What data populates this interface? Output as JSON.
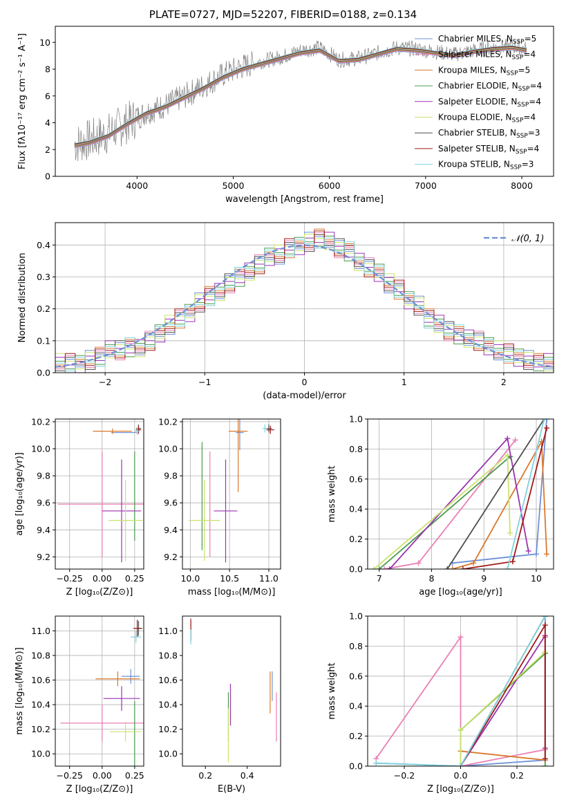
{
  "figure": {
    "title": "PLATE=0727, MJD=52207, FIBERID=0188, z=0.134"
  },
  "models": [
    {
      "name": "Chabrier MILES",
      "nssp": "5",
      "color": "#6c8fd6"
    },
    {
      "name": "Salpeter MILES",
      "nssp": "4",
      "color": "#e87fb6"
    },
    {
      "name": "Kroupa MILES",
      "nssp": "5",
      "color": "#d9782b"
    },
    {
      "name": "Chabrier ELODIE",
      "nssp": "4",
      "color": "#4a9a4a"
    },
    {
      "name": "Salpeter ELODIE",
      "nssp": "4",
      "color": "#9a32b0"
    },
    {
      "name": "Kroupa ELODIE",
      "nssp": "4",
      "color": "#c9e36a"
    },
    {
      "name": "Chabrier STELIB",
      "nssp": "3",
      "color": "#4d4d4d"
    },
    {
      "name": "Salpeter STELIB",
      "nssp": "4",
      "color": "#a01818"
    },
    {
      "name": "Kroupa STELIB",
      "nssp": "3",
      "color": "#7fd3dc"
    }
  ],
  "chart_data": [
    {
      "id": "spectrum",
      "type": "line",
      "xlabel": "wavelength [Angstrom, rest frame]",
      "ylabel": "Flux [fλ10⁻¹⁷ erg cm⁻² s⁻¹ A⁻¹]",
      "xlim": [
        3150,
        8330
      ],
      "ylim": [
        0,
        11.2
      ],
      "xticks": [
        4000,
        5000,
        6000,
        7000,
        8000
      ],
      "yticks": [
        0,
        2,
        4,
        6,
        8,
        10
      ],
      "grid": false,
      "legend": "top-right",
      "data_color": "#808080",
      "x": [
        3350,
        3500,
        3700,
        3900,
        4100,
        4300,
        4500,
        4700,
        4900,
        5100,
        5300,
        5500,
        5700,
        5900,
        6100,
        6300,
        6500,
        6700,
        6900,
        7100,
        7300,
        7500,
        7700,
        7900,
        8050
      ],
      "data": [
        2.4,
        2.7,
        3.2,
        4.0,
        4.8,
        5.3,
        6.0,
        6.8,
        7.6,
        8.2,
        8.6,
        8.9,
        9.4,
        9.6,
        8.7,
        8.8,
        9.2,
        9.6,
        9.5,
        9.3,
        9.1,
        9.4,
        9.6,
        9.7,
        9.5
      ],
      "model": [
        2.3,
        2.5,
        3.0,
        3.9,
        4.7,
        5.2,
        5.9,
        6.6,
        7.4,
        8.0,
        8.4,
        8.8,
        9.2,
        9.4,
        8.6,
        8.7,
        9.1,
        9.5,
        9.4,
        9.2,
        9.0,
        9.3,
        9.5,
        9.6,
        9.4
      ]
    },
    {
      "id": "residuals",
      "type": "line",
      "xlabel": "(data-model)/error",
      "ylabel": "Normed distribution",
      "xlim": [
        -2.5,
        2.5
      ],
      "ylim": [
        0,
        0.47
      ],
      "xticks": [
        -2,
        -1,
        0,
        1,
        2
      ],
      "yticks": [
        0.0,
        0.1,
        0.2,
        0.3,
        0.4
      ],
      "grid": true,
      "legend": "top-right",
      "gauss_label": "𝒩(0, 1)",
      "gauss_color": "#6c8fd6",
      "bins": [
        -2.5,
        -2.4,
        -2.3,
        -2.2,
        -2.1,
        -2.0,
        -1.9,
        -1.8,
        -1.7,
        -1.6,
        -1.5,
        -1.4,
        -1.3,
        -1.2,
        -1.1,
        -1.0,
        -0.9,
        -0.8,
        -0.7,
        -0.6,
        -0.5,
        -0.4,
        -0.3,
        -0.2,
        -0.1,
        0.0,
        0.1,
        0.2,
        0.3,
        0.4,
        0.5,
        0.6,
        0.7,
        0.8,
        0.9,
        1.0,
        1.1,
        1.2,
        1.3,
        1.4,
        1.5,
        1.6,
        1.7,
        1.8,
        1.9,
        2.0,
        2.1,
        2.2,
        2.3,
        2.4
      ],
      "hist": [
        0.03,
        0.03,
        0.03,
        0.04,
        0.05,
        0.07,
        0.07,
        0.08,
        0.08,
        0.1,
        0.12,
        0.15,
        0.17,
        0.19,
        0.22,
        0.24,
        0.25,
        0.28,
        0.3,
        0.32,
        0.34,
        0.36,
        0.37,
        0.39,
        0.4,
        0.41,
        0.42,
        0.41,
        0.39,
        0.38,
        0.35,
        0.33,
        0.31,
        0.28,
        0.26,
        0.23,
        0.21,
        0.17,
        0.15,
        0.13,
        0.12,
        0.11,
        0.1,
        0.08,
        0.07,
        0.06,
        0.05,
        0.04,
        0.03,
        0.03
      ]
    },
    {
      "id": "Z-age",
      "type": "scatter",
      "xlabel": "Z [log₁₀(Z/Z⊙)]",
      "ylabel": "age  [log₁₀(age/yr)]",
      "xlim": [
        -0.36,
        0.32
      ],
      "ylim": [
        9.11,
        10.22
      ],
      "xticks": [
        -0.25,
        0.0,
        0.25
      ],
      "yticks": [
        9.2,
        9.4,
        9.6,
        9.8,
        10.0,
        10.2
      ],
      "grid": true,
      "points": [
        {
          "m": 0,
          "x": 0.17,
          "y": 10.12,
          "xerr": 0.1,
          "yerr": 0.0
        },
        {
          "m": 1,
          "x": 0.0,
          "y": 9.59,
          "xerr": 0.34,
          "yerr": 0.39
        },
        {
          "m": 2,
          "x": 0.08,
          "y": 10.13,
          "xerr": 0.15,
          "yerr": 0.02
        },
        {
          "m": 3,
          "x": 0.25,
          "y": 9.65,
          "xerr": 0.0,
          "yerr": 0.33
        },
        {
          "m": 4,
          "x": 0.15,
          "y": 9.54,
          "xerr": 0.15,
          "yerr": 0.38
        },
        {
          "m": 5,
          "x": 0.18,
          "y": 9.47,
          "xerr": 0.13,
          "yerr": 0.3
        },
        {
          "m": 6,
          "x": 0.28,
          "y": 10.15,
          "xerr": 0.02,
          "yerr": 0.03
        },
        {
          "m": 7,
          "x": 0.28,
          "y": 10.14,
          "xerr": 0.02,
          "yerr": 0.03
        },
        {
          "m": 8,
          "x": 0.27,
          "y": 10.13,
          "xerr": 0.02,
          "yerr": 0.03
        }
      ]
    },
    {
      "id": "mass-age",
      "type": "scatter",
      "xlabel": "mass [log₁₀(M/M⊙)]",
      "ylabel": "",
      "xlim": [
        9.9,
        11.15
      ],
      "ylim": [
        9.11,
        10.22
      ],
      "xticks": [
        10.0,
        10.5,
        11.0
      ],
      "yticks": [
        9.2,
        9.4,
        9.6,
        9.8,
        10.0,
        10.2
      ],
      "grid": true,
      "points": [
        {
          "m": 0,
          "x": 10.63,
          "y": 10.12,
          "xerr": 0.05,
          "yerr": 0.13
        },
        {
          "m": 1,
          "x": 10.25,
          "y": 9.59,
          "xerr": 0.0,
          "yerr": 0.39
        },
        {
          "m": 2,
          "x": 10.61,
          "y": 10.13,
          "xerr": 0.12,
          "yerr": 0.45
        },
        {
          "m": 3,
          "x": 10.15,
          "y": 9.65,
          "xerr": 0.0,
          "yerr": 0.4
        },
        {
          "m": 4,
          "x": 10.45,
          "y": 9.54,
          "xerr": 0.15,
          "yerr": 0.38
        },
        {
          "m": 5,
          "x": 10.18,
          "y": 9.47,
          "xerr": 0.2,
          "yerr": 0.3
        },
        {
          "m": 6,
          "x": 11.0,
          "y": 10.15,
          "xerr": 0.04,
          "yerr": 0.03
        },
        {
          "m": 7,
          "x": 11.02,
          "y": 10.14,
          "xerr": 0.05,
          "yerr": 0.03
        },
        {
          "m": 8,
          "x": 10.95,
          "y": 10.15,
          "xerr": 0.03,
          "yerr": 0.03
        }
      ]
    },
    {
      "id": "age-weight",
      "type": "line",
      "xlabel": "age  [log₁₀(age/yr)]",
      "ylabel": "mass weight",
      "xlim": [
        6.78,
        10.33
      ],
      "ylim": [
        0,
        1.0
      ],
      "xticks": [
        7,
        8,
        9,
        10
      ],
      "yticks": [
        0.0,
        0.2,
        0.4,
        0.6,
        0.8,
        1.0
      ],
      "grid": true,
      "series": [
        {
          "m": 0,
          "x": [
            8.4,
            10.0,
            10.2
          ],
          "y": [
            0.04,
            0.1,
            1.0
          ]
        },
        {
          "m": 1,
          "x": [
            7.1,
            7.75,
            9.6
          ],
          "y": [
            0.0,
            0.04,
            0.86
          ]
        },
        {
          "m": 2,
          "x": [
            8.4,
            8.8,
            10.1,
            10.2
          ],
          "y": [
            0.0,
            0.04,
            0.85,
            0.1
          ]
        },
        {
          "m": 3,
          "x": [
            7.0,
            9.5
          ],
          "y": [
            0.0,
            0.75
          ]
        },
        {
          "m": 4,
          "x": [
            7.2,
            9.45,
            9.85
          ],
          "y": [
            0.0,
            0.87,
            0.12
          ]
        },
        {
          "m": 5,
          "x": [
            6.9,
            9.45,
            9.5
          ],
          "y": [
            0.0,
            0.76,
            0.24
          ]
        },
        {
          "m": 6,
          "x": [
            8.3,
            10.15
          ],
          "y": [
            0.0,
            1.0
          ]
        },
        {
          "m": 7,
          "x": [
            8.6,
            9.55,
            10.2
          ],
          "y": [
            0.0,
            0.05,
            0.94
          ]
        },
        {
          "m": 8,
          "x": [
            9.45,
            10.15
          ],
          "y": [
            0.0,
            1.0
          ]
        }
      ]
    },
    {
      "id": "Z-mass",
      "type": "scatter",
      "xlabel": "Z [log₁₀(Z/Z⊙)]",
      "ylabel": "mass [log₁₀(M/M⊙)]",
      "xlim": [
        -0.36,
        0.32
      ],
      "ylim": [
        9.9,
        11.12
      ],
      "xticks": [
        -0.25,
        0.0,
        0.25
      ],
      "yticks": [
        10.0,
        10.2,
        10.4,
        10.6,
        10.8,
        11.0
      ],
      "grid": true,
      "points": [
        {
          "m": 0,
          "x": 0.22,
          "y": 10.63,
          "xerr": 0.07,
          "yerr": 0.06
        },
        {
          "m": 1,
          "x": 0.0,
          "y": 10.25,
          "xerr": 0.32,
          "yerr": 0.15
        },
        {
          "m": 2,
          "x": 0.12,
          "y": 10.61,
          "xerr": 0.17,
          "yerr": 0.06
        },
        {
          "m": 3,
          "x": 0.25,
          "y": 10.15,
          "xerr": 0.0,
          "yerr": 0.28
        },
        {
          "m": 4,
          "x": 0.15,
          "y": 10.45,
          "xerr": 0.14,
          "yerr": 0.1
        },
        {
          "m": 5,
          "x": 0.18,
          "y": 10.18,
          "xerr": 0.12,
          "yerr": 0.08
        },
        {
          "m": 6,
          "x": 0.28,
          "y": 11.02,
          "xerr": 0.03,
          "yerr": 0.06
        },
        {
          "m": 7,
          "x": 0.27,
          "y": 11.02,
          "xerr": 0.03,
          "yerr": 0.07
        },
        {
          "m": 8,
          "x": 0.26,
          "y": 10.95,
          "xerr": 0.04,
          "yerr": 0.05
        }
      ]
    },
    {
      "id": "EBV-mass",
      "type": "scatter",
      "xlabel": "E(B-V)",
      "ylabel": "",
      "xlim": [
        0.09,
        0.56
      ],
      "ylim": [
        9.9,
        11.12
      ],
      "xticks": [
        0.2,
        0.4
      ],
      "yticks": [
        10.0,
        10.2,
        10.4,
        10.6,
        10.8,
        11.0
      ],
      "grid": false,
      "points": [
        {
          "m": 0,
          "x": 0.52,
          "y": 10.55,
          "xerr": 0.0,
          "yerr": 0.12
        },
        {
          "m": 1,
          "x": 0.54,
          "y": 10.3,
          "xerr": 0.0,
          "yerr": 0.2
        },
        {
          "m": 2,
          "x": 0.51,
          "y": 10.5,
          "xerr": 0.0,
          "yerr": 0.17
        },
        {
          "m": 3,
          "x": 0.31,
          "y": 10.3,
          "xerr": 0.0,
          "yerr": 0.2
        },
        {
          "m": 4,
          "x": 0.32,
          "y": 10.4,
          "xerr": 0.0,
          "yerr": 0.17
        },
        {
          "m": 5,
          "x": 0.31,
          "y": 10.15,
          "xerr": 0.0,
          "yerr": 0.22
        },
        {
          "m": 6,
          "x": 0.13,
          "y": 11.0,
          "xerr": 0.0,
          "yerr": 0.08
        },
        {
          "m": 7,
          "x": 0.13,
          "y": 11.01,
          "xerr": 0.0,
          "yerr": 0.09
        },
        {
          "m": 8,
          "x": 0.13,
          "y": 10.95,
          "xerr": 0.0,
          "yerr": 0.06
        }
      ]
    },
    {
      "id": "Z-weight",
      "type": "line",
      "xlabel": "Z [log₁₀(Z/Z⊙)]",
      "ylabel": "mass weight",
      "xlim": [
        -0.33,
        0.33
      ],
      "ylim": [
        0,
        1.0
      ],
      "xticks": [
        -0.2,
        0.0,
        0.2
      ],
      "yticks": [
        0.0,
        0.2,
        0.4,
        0.6,
        0.8,
        1.0
      ],
      "grid": true,
      "series": [
        {
          "m": 0,
          "x": [
            -0.3,
            0.0,
            0.3,
            0.3
          ],
          "y": [
            0.02,
            0.0,
            0.04,
            1.0
          ]
        },
        {
          "m": 1,
          "x": [
            -0.3,
            0.0,
            0.0,
            0.3
          ],
          "y": [
            0.05,
            0.86,
            0.0,
            0.11
          ]
        },
        {
          "m": 2,
          "x": [
            0.0,
            0.3,
            0.3
          ],
          "y": [
            0.1,
            0.04,
            0.86
          ]
        },
        {
          "m": 3,
          "x": [
            0.0,
            0.3,
            0.3
          ],
          "y": [
            0.24,
            0.75,
            0.0
          ]
        },
        {
          "m": 4,
          "x": [
            0.0,
            0.3,
            0.3
          ],
          "y": [
            0.0,
            0.87,
            0.12
          ]
        },
        {
          "m": 5,
          "x": [
            0.0,
            0.0,
            0.3,
            0.3
          ],
          "y": [
            0.0,
            0.24,
            0.76,
            0.76
          ]
        },
        {
          "m": 6,
          "x": [
            0.0,
            0.3
          ],
          "y": [
            0.0,
            1.0
          ]
        },
        {
          "m": 7,
          "x": [
            0.0,
            0.3,
            0.3
          ],
          "y": [
            0.0,
            0.94,
            0.05
          ]
        },
        {
          "m": 8,
          "x": [
            -0.3,
            0.0,
            0.3
          ],
          "y": [
            0.02,
            0.0,
            1.0
          ]
        }
      ]
    }
  ]
}
